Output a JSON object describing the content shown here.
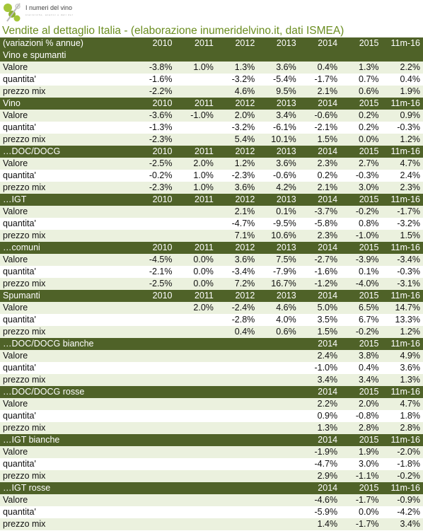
{
  "logo": {
    "name": "I numeri del vino",
    "tagline": "statistiche, analisi e dati del mondo del vino"
  },
  "title": "Vendite al dettaglio Italia - (elaborazione inumeridelvino.it, dati ISMEA)",
  "colors": {
    "header_bg": "#4f6228",
    "title": "#6a8d1f",
    "band": "#ebf1de"
  },
  "header_row": {
    "label": "(variazioni % annue)",
    "years": [
      "2010",
      "2011",
      "2012",
      "2013",
      "2014",
      "2015",
      "11m-16"
    ]
  },
  "sections": [
    {
      "title": "Vino e spumanti",
      "years": [
        "",
        "",
        "",
        "",
        "",
        "",
        ""
      ],
      "rows": [
        {
          "label": "Valore",
          "values": [
            "-3.8%",
            "1.0%",
            "1.3%",
            "3.6%",
            "0.4%",
            "1.3%",
            "2.2%"
          ]
        },
        {
          "label": "quantita'",
          "values": [
            "-1.6%",
            "",
            "-3.2%",
            "-5.4%",
            "-1.7%",
            "0.7%",
            "0.4%"
          ]
        },
        {
          "label": "prezzo mix",
          "values": [
            "-2.2%",
            "",
            "4.6%",
            "9.5%",
            "2.1%",
            "0.6%",
            "1.9%"
          ]
        }
      ]
    },
    {
      "title": "Vino",
      "years": [
        "2010",
        "2011",
        "2012",
        "2013",
        "2014",
        "2015",
        "11m-16"
      ],
      "rows": [
        {
          "label": "Valore",
          "values": [
            "-3.6%",
            "-1.0%",
            "2.0%",
            "3.4%",
            "-0.6%",
            "0.2%",
            "0.9%"
          ]
        },
        {
          "label": "quantita'",
          "values": [
            "-1.3%",
            "",
            "-3.2%",
            "-6.1%",
            "-2.1%",
            "0.2%",
            "-0.3%"
          ]
        },
        {
          "label": "prezzo mix",
          "values": [
            "-2.3%",
            "",
            "5.4%",
            "10.1%",
            "1.5%",
            "0.0%",
            "1.2%"
          ]
        }
      ]
    },
    {
      "title": "…DOC/DOCG",
      "years": [
        "2010",
        "2011",
        "2012",
        "2013",
        "2014",
        "2015",
        "11m-16"
      ],
      "rows": [
        {
          "label": "Valore",
          "values": [
            "-2.5%",
            "2.0%",
            "1.2%",
            "3.6%",
            "2.3%",
            "2.7%",
            "4.7%"
          ]
        },
        {
          "label": "quantita'",
          "values": [
            "-0.2%",
            "1.0%",
            "-2.3%",
            "-0.6%",
            "0.2%",
            "-0.3%",
            "2.4%"
          ]
        },
        {
          "label": "prezzo mix",
          "values": [
            "-2.3%",
            "1.0%",
            "3.6%",
            "4.2%",
            "2.1%",
            "3.0%",
            "2.3%"
          ]
        }
      ]
    },
    {
      "title": "…IGT",
      "years": [
        "2010",
        "2011",
        "2012",
        "2013",
        "2014",
        "2015",
        "11m-16"
      ],
      "rows": [
        {
          "label": "Valore",
          "values": [
            "",
            "",
            "2.1%",
            "0.1%",
            "-3.7%",
            "-0.2%",
            "-1.7%"
          ]
        },
        {
          "label": "quantita'",
          "values": [
            "",
            "",
            "-4.7%",
            "-9.5%",
            "-5.8%",
            "0.8%",
            "-3.2%"
          ]
        },
        {
          "label": "prezzo mix",
          "values": [
            "",
            "",
            "7.1%",
            "10.6%",
            "2.3%",
            "-1.0%",
            "1.5%"
          ]
        }
      ]
    },
    {
      "title": "…comuni",
      "years": [
        "2010",
        "2011",
        "2012",
        "2013",
        "2014",
        "2015",
        "11m-16"
      ],
      "rows": [
        {
          "label": "Valore",
          "values": [
            "-4.5%",
            "0.0%",
            "3.6%",
            "7.5%",
            "-2.7%",
            "-3.9%",
            "-3.4%"
          ]
        },
        {
          "label": "quantita'",
          "values": [
            "-2.1%",
            "0.0%",
            "-3.4%",
            "-7.9%",
            "-1.6%",
            "0.1%",
            "-0.3%"
          ]
        },
        {
          "label": "prezzo mix",
          "values": [
            "-2.5%",
            "0.0%",
            "7.2%",
            "16.7%",
            "-1.2%",
            "-4.0%",
            "-3.1%"
          ]
        }
      ]
    },
    {
      "title": "Spumanti",
      "years": [
        "2010",
        "2011",
        "2012",
        "2013",
        "2014",
        "2015",
        "11m-16"
      ],
      "rows": [
        {
          "label": "Valore",
          "values": [
            "",
            "2.0%",
            "-2.4%",
            "4.6%",
            "5.0%",
            "6.5%",
            "14.7%"
          ]
        },
        {
          "label": "quantita'",
          "values": [
            "",
            "",
            "-2.8%",
            "4.0%",
            "3.5%",
            "6.7%",
            "13.3%"
          ]
        },
        {
          "label": "prezzo mix",
          "values": [
            "",
            "",
            "0.4%",
            "0.6%",
            "1.5%",
            "-0.2%",
            "1.2%"
          ]
        }
      ]
    },
    {
      "title": "…DOC/DOCG bianche",
      "years": [
        "",
        "",
        "",
        "",
        "2014",
        "2015",
        "11m-16"
      ],
      "rows": [
        {
          "label": "Valore",
          "values": [
            "",
            "",
            "",
            "",
            "2.4%",
            "3.8%",
            "4.9%"
          ]
        },
        {
          "label": "quantita'",
          "values": [
            "",
            "",
            "",
            "",
            "-1.0%",
            "0.4%",
            "3.6%"
          ]
        },
        {
          "label": "prezzo mix",
          "values": [
            "",
            "",
            "",
            "",
            "3.4%",
            "3.4%",
            "1.3%"
          ]
        }
      ]
    },
    {
      "title": "…DOC/DOCG rosse",
      "years": [
        "",
        "",
        "",
        "",
        "2014",
        "2015",
        "11m-16"
      ],
      "rows": [
        {
          "label": "Valore",
          "values": [
            "",
            "",
            "",
            "",
            "2.2%",
            "2.0%",
            "4.7%"
          ]
        },
        {
          "label": "quantita'",
          "values": [
            "",
            "",
            "",
            "",
            "0.9%",
            "-0.8%",
            "1.8%"
          ]
        },
        {
          "label": "prezzo mix",
          "values": [
            "",
            "",
            "",
            "",
            "1.3%",
            "2.8%",
            "2.8%"
          ]
        }
      ]
    },
    {
      "title": "…IGT bianche",
      "years": [
        "",
        "",
        "",
        "",
        "2014",
        "2015",
        "11m-16"
      ],
      "rows": [
        {
          "label": "Valore",
          "values": [
            "",
            "",
            "",
            "",
            "-1.9%",
            "1.9%",
            "-2.0%"
          ]
        },
        {
          "label": "quantita'",
          "values": [
            "",
            "",
            "",
            "",
            "-4.7%",
            "3.0%",
            "-1.8%"
          ]
        },
        {
          "label": "prezzo mix",
          "values": [
            "",
            "",
            "",
            "",
            "2.9%",
            "-1.1%",
            "-0.2%"
          ]
        }
      ]
    },
    {
      "title": "…IGT rosse",
      "years": [
        "",
        "",
        "",
        "",
        "2014",
        "2015",
        "11m-16"
      ],
      "rows": [
        {
          "label": "Valore",
          "values": [
            "",
            "",
            "",
            "",
            "-4.6%",
            "-1.7%",
            "-0.9%"
          ]
        },
        {
          "label": "quantita'",
          "values": [
            "",
            "",
            "",
            "",
            "-5.9%",
            "0.0%",
            "-4.2%"
          ]
        },
        {
          "label": "prezzo mix",
          "values": [
            "",
            "",
            "",
            "",
            "1.4%",
            "-1.7%",
            "3.4%"
          ]
        }
      ]
    }
  ]
}
